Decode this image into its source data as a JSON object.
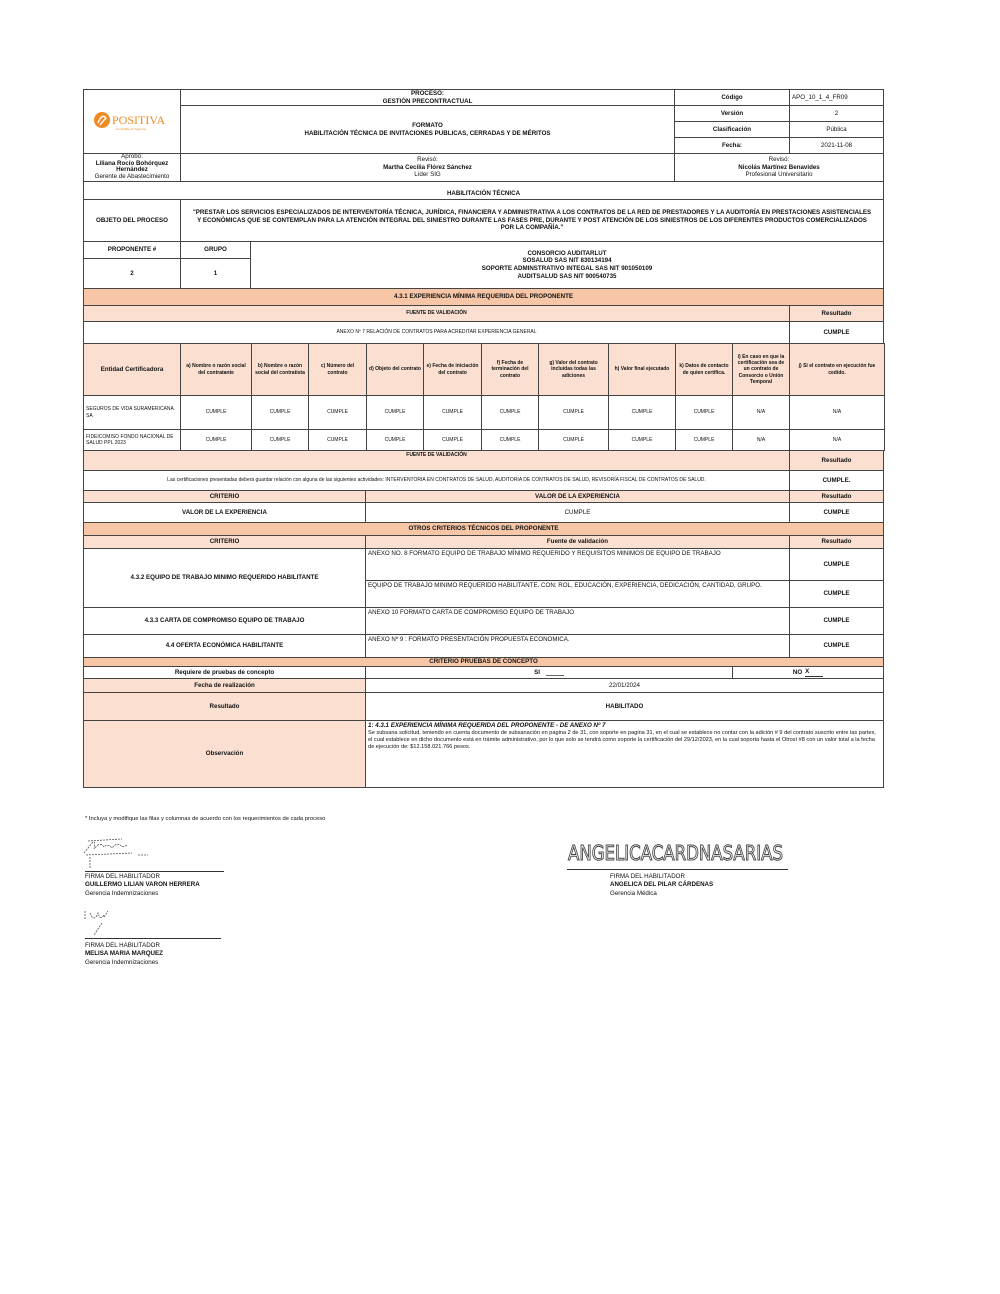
{
  "header": {
    "logo_text": "POSITIVA",
    "logo_tagline": "Compañía de Seguros",
    "proceso_label": "PROCESO:",
    "proceso_value": "GESTIÓN PRECONTRACTUAL",
    "formato_label": "FORMATO",
    "formato_value": "HABILITACIÓN TÉCNICA DE INVITACIONES  PUBLICAS, CERRADAS Y DE MÉRITOS",
    "meta": [
      {
        "label": "Código",
        "value": "APO_10_1_4_FR09"
      },
      {
        "label": "Versión",
        "value": "2"
      },
      {
        "label": "Clasificación",
        "value": "Pública"
      },
      {
        "label": "Fecha:",
        "value": "2021-11-08"
      }
    ],
    "aprobo": {
      "label": "Aprobó:",
      "name": "Liliana Rocío Bohórquez Hernández",
      "role": "Gerente de Abastecimiento"
    },
    "reviso1": {
      "label": "Revisó:",
      "name": "Martha Cecilia Flórez Sánchez",
      "role": "Líder SIG"
    },
    "reviso2": {
      "label": "Revisó:",
      "name": "Nicolás Martínez Benavides",
      "role": "Profesional Universitario"
    }
  },
  "habilitacion_title": "HABILITACIÓN TÉCNICA",
  "objeto": {
    "label": "OBJETO DEL PROCESO",
    "value": "\"PRESTAR LOS SERVICIOS ESPECIALIZADOS DE INTERVENTORÍA TÉCNICA, JURÍDICA, FINANCIERA Y ADMINISTRATIVA A LOS CONTRATOS DE LA RED DE PRESTADORES Y LA AUDITORÍA EN PRESTACIONES ASISTENCIALES Y ECONÓMICAS QUE SE CONTEMPLAN PARA LA ATENCIÓN INTEGRAL DEL SINIESTRO DURANTE LAS FASES PRE, DURANTE Y POST ATENCIÓN DE LOS SINIESTROS DE LOS DIFERENTES PRODUCTOS COMERCIALIZADOS POR LA COMPAÑÍA.\""
  },
  "proponente": {
    "num_label": "PROPONENTE #",
    "grupo_label": "GRUPO",
    "num": "2",
    "grupo": "1",
    "lines": [
      "CONSORCIO AUDITARLUT",
      "SOSALUD SAS NIT 830134194",
      "SOPORTE ADMINSTRATIVO INTEGAL SAS  NIT 901050109",
      "AUDITSALUD SAS NIT 900540735"
    ]
  },
  "experiencia": {
    "title": "4.3.1 EXPERIENCIA MÍNIMA REQUERIDA DEL PROPONENTE",
    "fuente_label": "FUENTE DE VALIDACIÓN",
    "resultado_label": "Resultado",
    "anexo": "ANEXO Nº 7 RELACIÓN DE CONTRATOS PARA ACREDITAR EXPERIENCIA GENERAL",
    "anexo_result": "CUMPLE",
    "columns": [
      "Entidad Certificadora",
      "a) Nombre o razón social del contratante",
      "b) Nombre o razón social del contratista",
      "c) Número del contrato",
      "d) Objeto del contrato",
      "e) Fecha de iniciación del contrato",
      "f) Fecha de terminación del contrato",
      "g) Valor del contrato incluidas todas las adiciones",
      "h) Valor final ejecutado",
      "k) Datos de contacto de quien certifica.",
      "i) En caso en que la certificación sea de un contrato de Consorcio o Unión Temporal",
      "j) Si el contrato en ejecución fue cedido."
    ],
    "rows": [
      [
        "SEGUROS DE VIDA SURAMERICANA SA",
        "CUMPLE",
        "CUMPLE",
        "CUMPLE",
        "CUMPLE",
        "CUMPLE",
        "CUMPLE",
        "CUMPLE",
        "CUMPLE",
        "CUMPLE",
        "N/A",
        "N/A"
      ],
      [
        "FIDEICOMISO FONDO NACIONAL DE SALUD PPL 2023",
        "CUMPLE",
        "CUMPLE",
        "CUMPLE",
        "CUMPLE",
        "CUMPLE",
        "CUMPLE",
        "CUMPLE",
        "CUMPLE",
        "CUMPLE",
        "N/A",
        "N/A"
      ]
    ],
    "fuente2_label": "FUENTE DE VALIDACIÓN",
    "actividades": "Las certificaciones presentadas deberá guardar relación con alguna de las siguientes actividades: INTERVENTORIA EN CONTRATOS DE SALUD, AUDITORIA DE CONTRATOS DE SALUD, REVISORÍA FISCAL DE CONTRATOS DE SALUD.",
    "actividades_result": "CUMPLE.",
    "criterio_label": "CRITERIO",
    "valor_label": "VALOR DE LA EXPERIENCIA",
    "valor_criterio": "VALOR DE LA EXPERIENCIA",
    "valor_value": "CUMPLE",
    "valor_result": "CUMPLE"
  },
  "otros": {
    "title": "OTROS CRITERIOS TÉCNICOS DEL PROPONENTE",
    "criterio_label": "CRITERIO",
    "fuente_label": "Fuente de validación",
    "resultado_label": "Resultado",
    "equipo_label": "4.3.2 EQUIPO DE TRABAJO MINIMO REQUERIDO HABILITANTE",
    "equipo_fuente1": "ANEXO NO. 8 FORMATO EQUIPO DE TRABAJO MÍNIMO REQUERIDO Y REQUISITOS MINIMOS DE EQUIPO DE TRABAJO",
    "equipo_result1": "CUMPLE",
    "equipo_fuente2": "EQUIPO DE TRABAJO MINIMO REQUERIDO HABILITANTE. CON: ROL, EDUCACIÓN, EXPERIENCIA, DEDICACIÓN, CANTIDAD, GRUPO.",
    "equipo_result2": "CUMPLE",
    "carta_label": "4.3.3 CARTA DE COMPROMISO EQUIPO DE TRABAJO",
    "carta_fuente": "ANEXO 10 FORMATO CARTA DE COMPROMISO EQUIPO DE TRABAJO",
    "carta_result": "CUMPLE",
    "oferta_label": "4.4 OFERTA ECONÓMICA HABILITANTE",
    "oferta_fuente": "ANEXO Nº 9 : FORMATO PRESENTACIÓN PROPUESTA ECONOMICA.",
    "oferta_result": "CUMPLE"
  },
  "pruebas": {
    "title": "CRITERIO PRUEBAS DE CONCEPTO",
    "requiere_label": "Requiere de pruebas de concepto",
    "si_label": "SI",
    "si_value": "",
    "no_label": "NO",
    "no_value": "X",
    "fecha_label": "Fecha de realización",
    "fecha_value": "22/01/2024",
    "resultado_label": "Resultado",
    "resultado_value": "HABILITADO",
    "observacion_label": "Observación",
    "observacion_title": "1: 4.3.1 EXPERIENCIA MÍNIMA REQUERIDA DEL PROPONENTE  - DE ANEXO Nº 7",
    "observacion_text": "Se subsana solicitud, teniendo en cuenta documento de subsanación en pagina 2 de 31, con soporte en pagina 31, en el cual se establece no contar con la adición # 9 del contrato suscrito entre las partes, el cual establece en dicho documento está en trámite administrativo, por lo que solo se tendrá como soporte la certificación del 29/12/2023, en la cual soporta hasta el Otrosí #8 con un valor total a la fecha de ejecución de: $12.158.021.766 pesos."
  },
  "footnote": "* Incluya y modifique las filas y columnas de acuerdo con los requerimientos de cada proceso",
  "firmas": [
    {
      "label": "FIRMA  DEL HABILITADOR",
      "name": "GUILLERMO LILIAN VARON HERRERA",
      "role": "Gerencia Indemnizaciones"
    },
    {
      "label": "FIRMA  DEL HABILITADOR",
      "name": "MELISA MARIA MARQUEZ",
      "role": "Gerencia Indemnizaciones"
    },
    {
      "label": "FIRMA  DEL HABILITADOR",
      "name": "ANGELICA DEL PILAR CÁRDENAS",
      "role": "Gerencia Médica",
      "signature_text": "ANGELICA CARDENAS ARIAS"
    }
  ],
  "colors": {
    "peach_dark": "#f7c6a7",
    "peach_light": "#fbe0d2",
    "logo_orange": "#f08a24"
  }
}
